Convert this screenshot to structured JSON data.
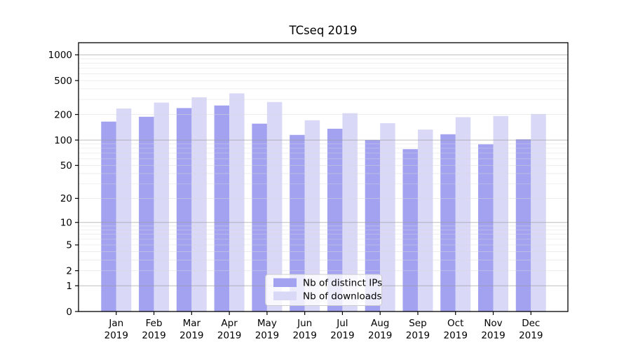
{
  "chart_data": {
    "type": "bar",
    "title": "TCseq 2019",
    "categories": [
      "Jan 2019",
      "Feb 2019",
      "Mar 2019",
      "Apr 2019",
      "May 2019",
      "Jun 2019",
      "Jul 2019",
      "Aug 2019",
      "Sep 2019",
      "Oct 2019",
      "Nov 2019",
      "Dec 2019"
    ],
    "x_tick_line1": [
      "Jan",
      "Feb",
      "Mar",
      "Apr",
      "May",
      "Jun",
      "Jul",
      "Aug",
      "Sep",
      "Oct",
      "Nov",
      "Dec"
    ],
    "x_tick_line2": "2019",
    "series": [
      {
        "name": "Nb of distinct IPs",
        "color": "#a2a2f0",
        "values": [
          165,
          188,
          238,
          255,
          156,
          115,
          136,
          100,
          78,
          117,
          89,
          102
        ]
      },
      {
        "name": "Nb of downloads",
        "color": "#d9d9f7",
        "values": [
          235,
          276,
          318,
          354,
          280,
          171,
          207,
          158,
          133,
          186,
          192,
          203
        ]
      }
    ],
    "yscale": "log1p",
    "ytick_labels": [
      0,
      1,
      2,
      5,
      10,
      20,
      50,
      100,
      200,
      500,
      1000
    ],
    "ylim": [
      0,
      1400
    ],
    "grid": true,
    "legend_position": "lower-center",
    "colors": {
      "major_gridline": "#9a9a9a",
      "minor_gridline": "#d9d9d9",
      "axis_spine": "#000000",
      "legend_border": "#cccccc",
      "legend_background": "#ffffff"
    }
  }
}
